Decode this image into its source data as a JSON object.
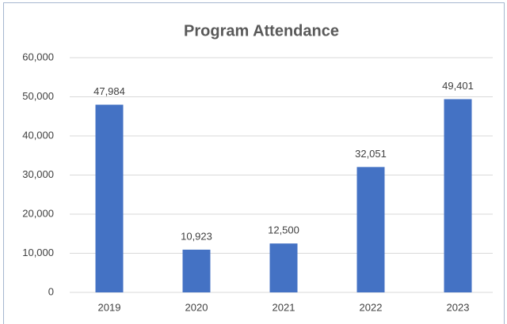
{
  "chart_data": {
    "type": "bar",
    "title": "Program Attendance",
    "categories": [
      "2019",
      "2020",
      "2021",
      "2022",
      "2023"
    ],
    "values": [
      47984,
      10923,
      12500,
      32051,
      49401
    ],
    "value_labels": [
      "47,984",
      "10,923",
      "12,500",
      "32,051",
      "49,401"
    ],
    "color": "#4472c4",
    "ylim": [
      0,
      60000
    ],
    "yticks": [
      0,
      {
        "value": 10000,
        "label": "10,000"
      },
      {
        "value": 20000,
        "label": "20,000"
      },
      {
        "value": 30000,
        "label": "30,000"
      },
      {
        "value": 40000,
        "label": "40,000"
      },
      {
        "value": 50000,
        "label": "50,000"
      },
      {
        "value": 60000,
        "label": "60,000"
      }
    ],
    "grid": true
  }
}
